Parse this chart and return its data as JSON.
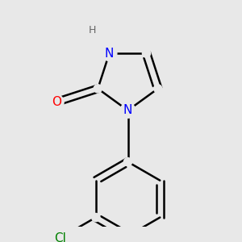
{
  "background_color": "#e8e8e8",
  "bond_color": "#000000",
  "N_color": "#0000ff",
  "O_color": "#ff0000",
  "Cl_color": "#008000",
  "bond_width": 1.8,
  "font_size_N": 11,
  "font_size_O": 11,
  "font_size_Cl": 11,
  "font_size_H": 9,
  "fig_width": 3.0,
  "fig_height": 3.0,
  "dpi": 100,
  "xlim": [
    -1.6,
    1.4
  ],
  "ylim": [
    -1.8,
    1.5
  ]
}
